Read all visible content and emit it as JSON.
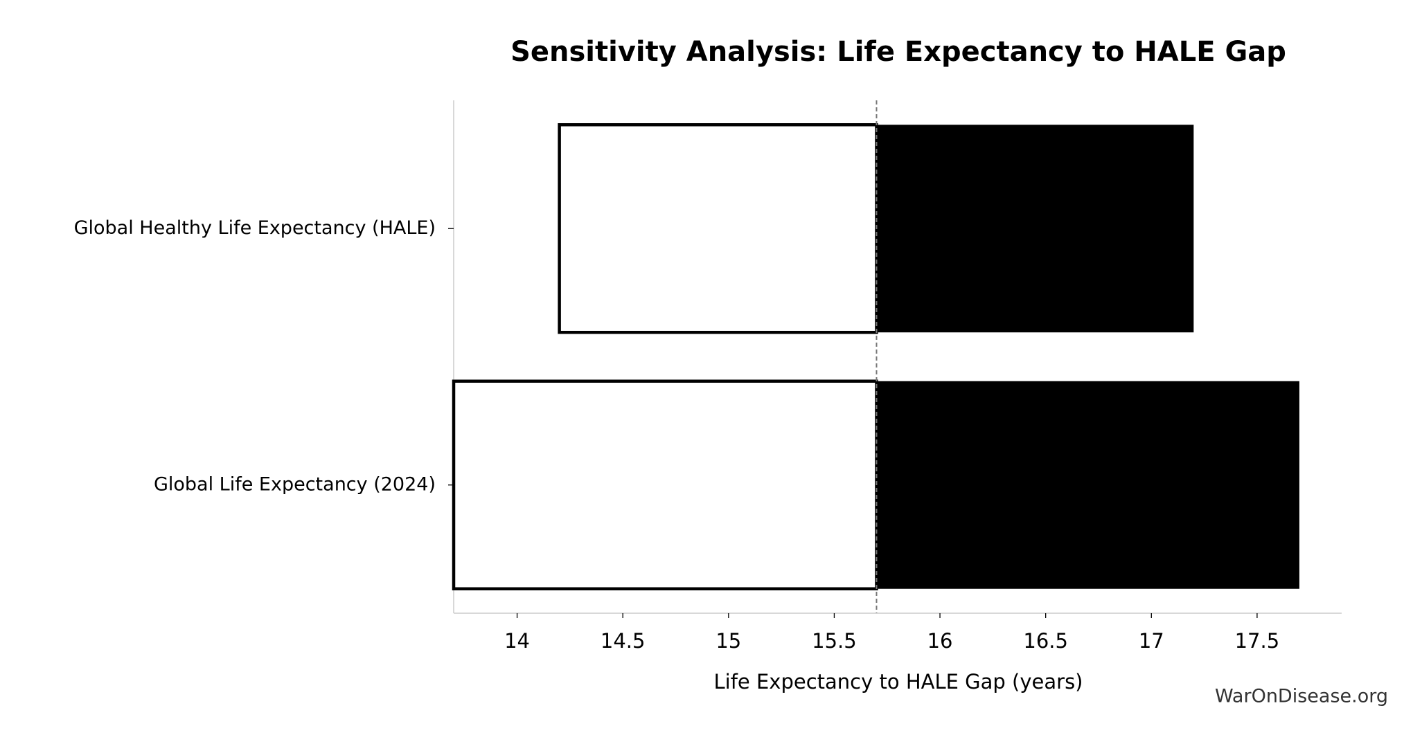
{
  "chart_data": {
    "type": "tornado",
    "title": "Sensitivity Analysis: Life Expectancy to HALE Gap",
    "xlabel": "Life Expectancy to HALE Gap (years)",
    "watermark": "WarOnDisease.org",
    "categories": [
      "Global Healthy Life Expectancy (HALE)",
      "Global Life Expectancy (2024)"
    ],
    "baseline": 15.7,
    "low_values": [
      14.2,
      13.7
    ],
    "high_values": [
      17.2,
      17.7
    ],
    "low_color": "#ffffff",
    "high_color": "#000000",
    "xlim": [
      13.7,
      17.9
    ],
    "xticks": [
      14,
      14.5,
      15,
      15.5,
      16,
      16.5,
      17,
      17.5
    ]
  }
}
